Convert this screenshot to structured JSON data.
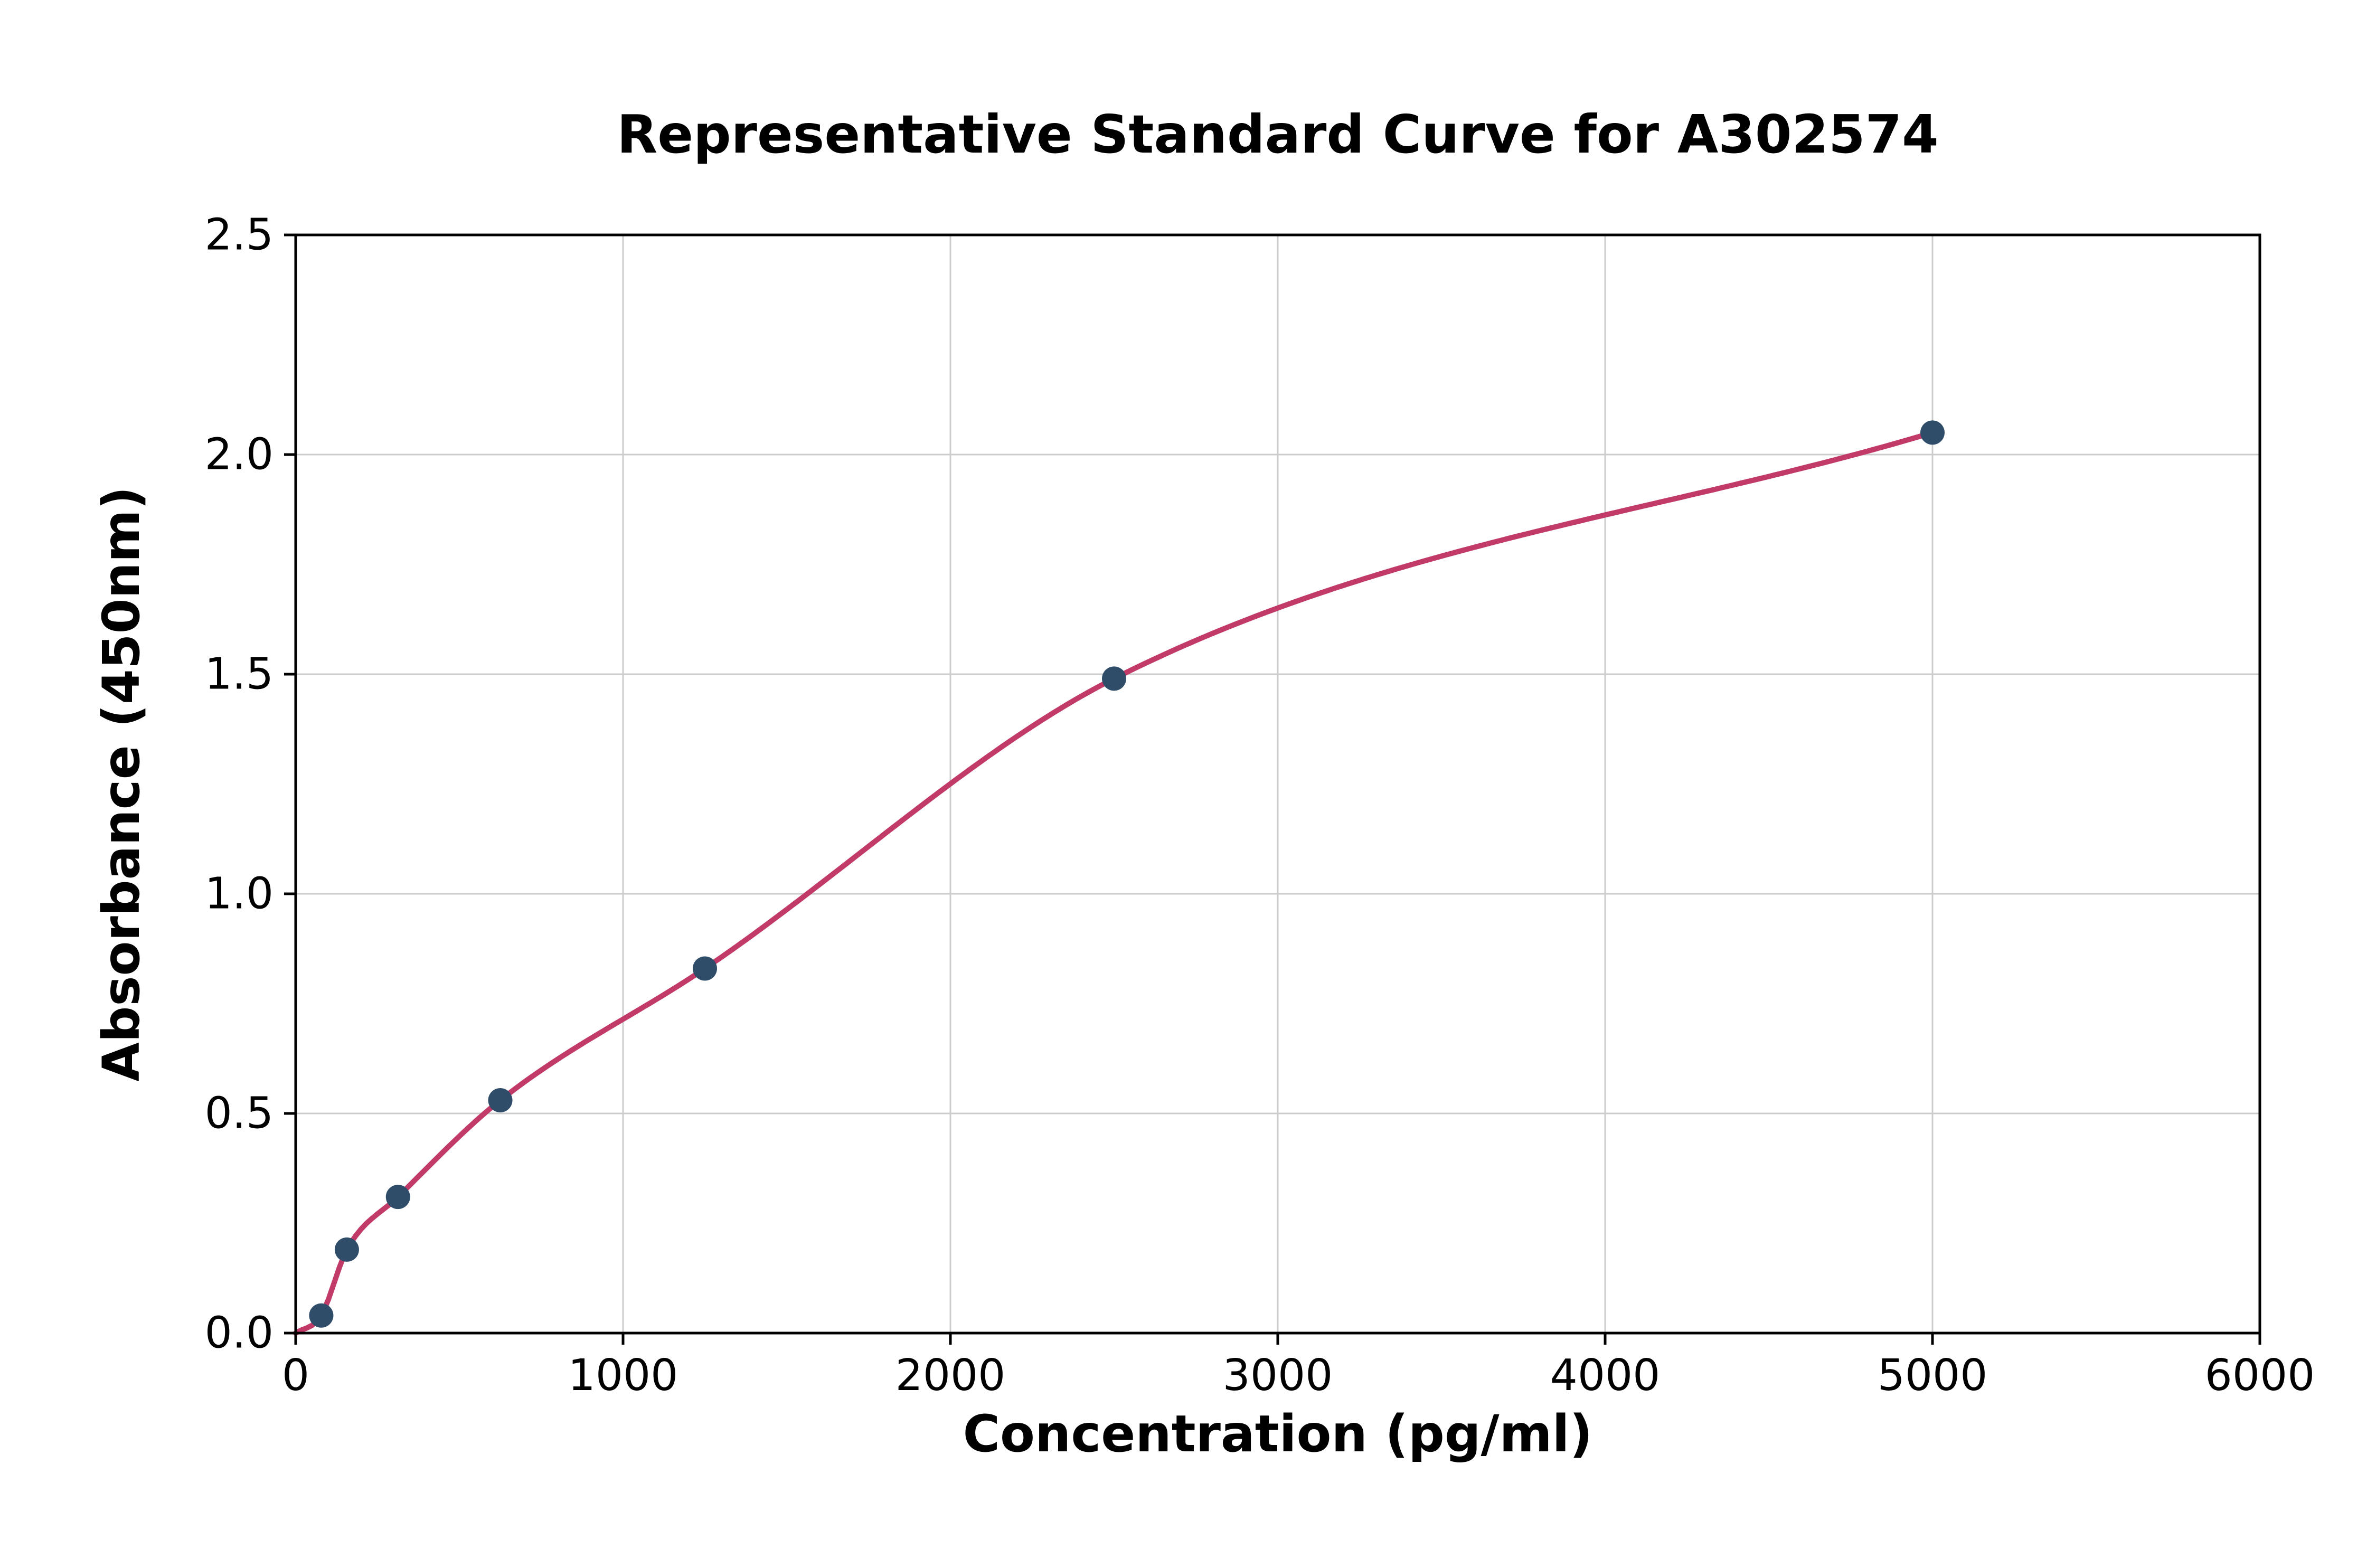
{
  "chart_data": {
    "type": "scatter",
    "title": "Representative Standard Curve for A302574",
    "xlabel": "Concentration (pg/ml)",
    "ylabel": "Absorbance (450nm)",
    "xlim": [
      0,
      6000
    ],
    "ylim": [
      0,
      2.5
    ],
    "x_ticks": [
      0,
      1000,
      2000,
      3000,
      4000,
      5000,
      6000
    ],
    "x_tick_labels": [
      "0",
      "1000",
      "2000",
      "3000",
      "4000",
      "5000",
      "6000"
    ],
    "y_ticks": [
      0.0,
      0.5,
      1.0,
      1.5,
      2.0,
      2.5
    ],
    "y_tick_labels": [
      "0.0",
      "0.5",
      "1.0",
      "1.5",
      "2.0",
      "2.5"
    ],
    "grid": true,
    "legend": "none",
    "points": {
      "x": [
        78.1,
        156.3,
        312.5,
        625,
        1250,
        2500,
        5000
      ],
      "y": [
        0.04,
        0.19,
        0.31,
        0.53,
        0.83,
        1.49,
        2.05
      ]
    },
    "fit_curve": {
      "x": [
        0,
        78.1,
        156.3,
        312.5,
        625,
        1250,
        2500,
        5000
      ],
      "y": [
        0.0,
        0.04,
        0.19,
        0.31,
        0.53,
        0.83,
        1.49,
        2.05
      ]
    },
    "colors": {
      "curve": "#c13a68",
      "points": "#2f4d68",
      "grid": "#cccccc",
      "frame": "#000000",
      "text": "#000000",
      "background": "#ffffff"
    }
  }
}
